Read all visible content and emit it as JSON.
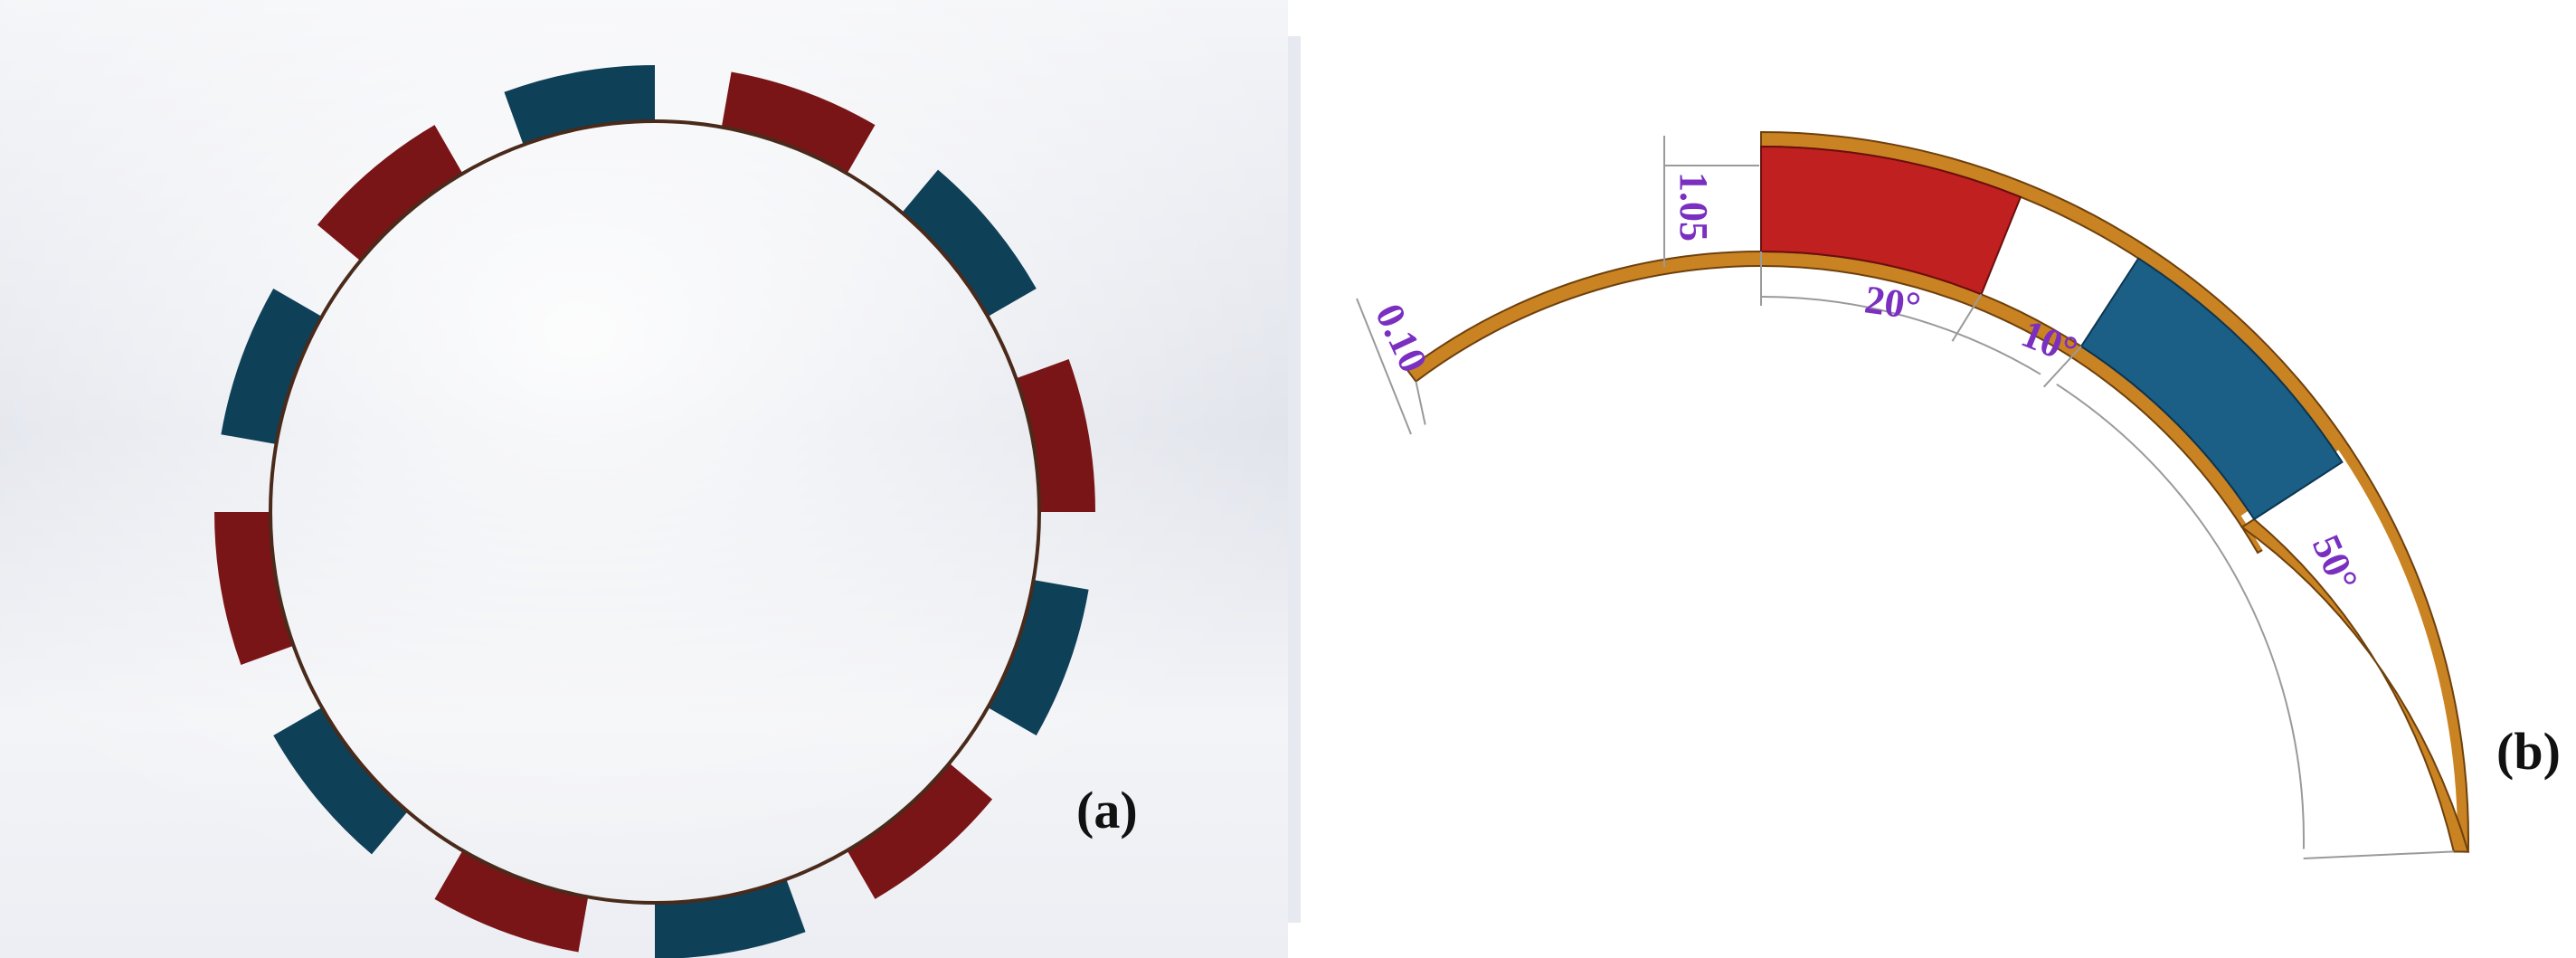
{
  "panel_a": {
    "label": "(a)",
    "magnet_colors": [
      "#0e4058",
      "#7a1517"
    ],
    "ring_color": "#4a2a1a"
  },
  "panel_b": {
    "label": "(b)",
    "dimensions": {
      "magnet_thickness": "1.05",
      "sheet_thickness": "0.10",
      "magnet_arc": "20°",
      "gap_arc": "10°",
      "remaining_arc": "50°"
    },
    "colors": {
      "dimension_text": "#7a2fc0",
      "red_magnet": "#c0201f",
      "blue_magnet": "#1b5f86",
      "sheet": "#c98322",
      "sheet_edge": "#6e400c"
    }
  }
}
